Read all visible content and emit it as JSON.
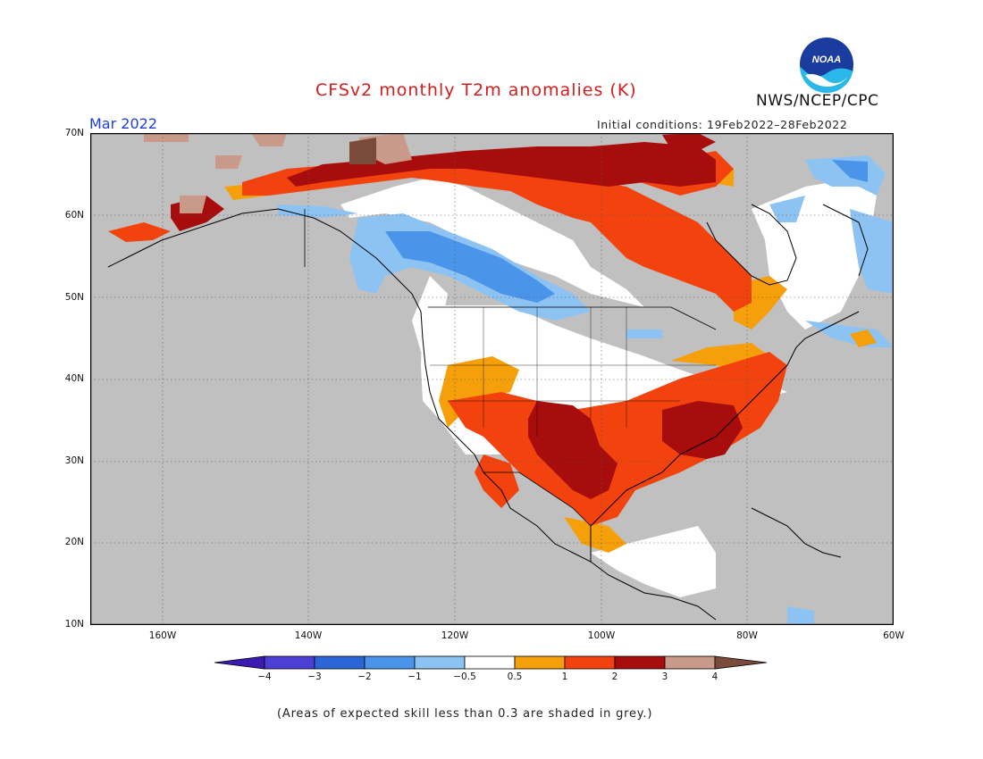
{
  "title": "CFSv2 monthly T2m anomalies (K)",
  "month_label": "Mar 2022",
  "initial_conditions": "Initial conditions: 19Feb2022–28Feb2022",
  "agency": "NWS/NCEP/CPC",
  "logo_text": "NOAA",
  "skill_note": "(Areas of expected skill less than 0.3 are shaded in grey.)",
  "map": {
    "lat_labels": [
      "70N",
      "60N",
      "50N",
      "40N",
      "30N",
      "20N",
      "10N"
    ],
    "lon_labels": [
      "160W",
      "140W",
      "120W",
      "100W",
      "80W",
      "60W"
    ],
    "lat_range": [
      10,
      70
    ],
    "lon_range": [
      -171,
      -60
    ]
  },
  "colorbar": {
    "ticks": [
      "−4",
      "−3",
      "−2",
      "−1",
      "−0.5",
      "0.5",
      "1",
      "2",
      "3",
      "4"
    ],
    "colors": [
      "#3a1ab0",
      "#4b3fd4",
      "#2a66d6",
      "#4a95ea",
      "#8cc3f2",
      "#ffffff",
      "#f5a00a",
      "#f2420e",
      "#a80d0d",
      "#c99a8a",
      "#7a4a3a"
    ]
  },
  "colors": {
    "skill_grey": "#c0c0c0",
    "title_red": "#d41e1e",
    "month_blue": "#1f3fd6"
  }
}
